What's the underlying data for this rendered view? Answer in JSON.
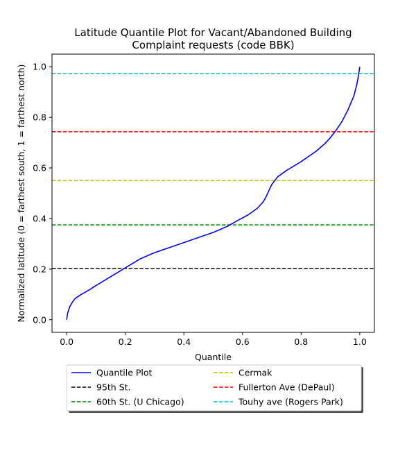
{
  "chart_data": {
    "type": "line",
    "title_line1": "Latitude Quantile Plot for Vacant/Abandoned Building",
    "title_line2": "Complaint  requests (code BBK)",
    "xlabel": "Quantile",
    "ylabel": "Normalized latitude (0 = farthest south, 1 = farthest north)",
    "xlim": [
      -0.05,
      1.05
    ],
    "ylim": [
      -0.05,
      1.05
    ],
    "xticks": [
      0.0,
      0.2,
      0.4,
      0.6,
      0.8,
      1.0
    ],
    "xtick_labels": [
      "0.0",
      "0.2",
      "0.4",
      "0.6",
      "0.8",
      "1.0"
    ],
    "yticks": [
      0.0,
      0.2,
      0.4,
      0.6,
      0.8,
      1.0
    ],
    "ytick_labels": [
      "0.0",
      "0.2",
      "0.4",
      "0.6",
      "0.8",
      "1.0"
    ],
    "grid": false,
    "legend_position": "below-center",
    "series": [
      {
        "name": "Quantile Plot",
        "color": "#0000ff",
        "style": "solid",
        "x": [
          0.0,
          0.003,
          0.01,
          0.02,
          0.03,
          0.05,
          0.08,
          0.1,
          0.15,
          0.2,
          0.25,
          0.3,
          0.35,
          0.4,
          0.45,
          0.5,
          0.55,
          0.58,
          0.62,
          0.65,
          0.67,
          0.68,
          0.69,
          0.7,
          0.72,
          0.75,
          0.8,
          0.85,
          0.88,
          0.9,
          0.92,
          0.94,
          0.96,
          0.98,
          0.99,
          0.995,
          1.0
        ],
        "y": [
          0.0,
          0.025,
          0.05,
          0.07,
          0.085,
          0.1,
          0.12,
          0.135,
          0.17,
          0.205,
          0.24,
          0.265,
          0.285,
          0.305,
          0.325,
          0.345,
          0.37,
          0.39,
          0.415,
          0.44,
          0.465,
          0.485,
          0.51,
          0.535,
          0.565,
          0.59,
          0.625,
          0.665,
          0.695,
          0.72,
          0.75,
          0.785,
          0.83,
          0.885,
          0.93,
          0.96,
          1.0
        ]
      },
      {
        "name": "95th St.",
        "color": "#000000",
        "style": "dashed",
        "y": 0.203
      },
      {
        "name": "60th St. (U Chicago)",
        "color": "#008000",
        "style": "dashed",
        "y": 0.375
      },
      {
        "name": "Cermak",
        "color": "#bfbf00",
        "style": "dashed",
        "y": 0.55
      },
      {
        "name": "Fullerton Ave (DePaul)",
        "color": "#ff0000",
        "style": "dashed",
        "y": 0.743
      },
      {
        "name": "Touhy ave (Rogers Park)",
        "color": "#00bfbf",
        "style": "dashed",
        "y": 0.973
      }
    ]
  }
}
